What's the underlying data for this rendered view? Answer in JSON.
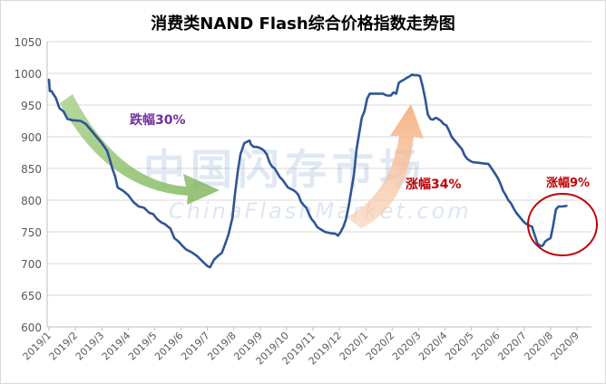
{
  "chart_data": {
    "type": "line",
    "title": "消费类NAND Flash综合价格指数走势图",
    "xlabel": "",
    "ylabel": "",
    "ylim": [
      600,
      1050
    ],
    "y_ticks": [
      "600",
      "650",
      "700",
      "750",
      "800",
      "850",
      "900",
      "950",
      "1000",
      "1050"
    ],
    "x_ticks": [
      "2019/1",
      "2019/2",
      "2019/3",
      "2019/4",
      "2019/5",
      "2019/6",
      "2019/7",
      "2019/8",
      "2019/9",
      "2019/10",
      "2019/11",
      "2019/12",
      "2020/1",
      "2020/2",
      "2020/3",
      "2020/4",
      "2020/5",
      "2020/6",
      "2020/7",
      "2020/8",
      "2020/9"
    ],
    "grid": true,
    "legend": "none",
    "series": [
      {
        "color": "#2f5597",
        "points": [
          [
            0.0,
            990
          ],
          [
            0.03,
            972
          ],
          [
            0.1,
            972
          ],
          [
            0.15,
            968
          ],
          [
            0.25,
            962
          ],
          [
            0.4,
            945
          ],
          [
            0.55,
            940
          ],
          [
            0.7,
            928
          ],
          [
            0.9,
            926
          ],
          [
            1.2,
            925
          ],
          [
            1.4,
            920
          ],
          [
            1.6,
            910
          ],
          [
            1.8,
            900
          ],
          [
            2.0,
            890
          ],
          [
            2.2,
            878
          ],
          [
            2.3,
            865
          ],
          [
            2.4,
            850
          ],
          [
            2.5,
            838
          ],
          [
            2.6,
            820
          ],
          [
            2.8,
            815
          ],
          [
            3.0,
            808
          ],
          [
            3.2,
            797
          ],
          [
            3.4,
            790
          ],
          [
            3.6,
            788
          ],
          [
            3.8,
            780
          ],
          [
            3.95,
            778
          ],
          [
            4.1,
            770
          ],
          [
            4.25,
            765
          ],
          [
            4.4,
            762
          ],
          [
            4.6,
            755
          ],
          [
            4.75,
            740
          ],
          [
            4.9,
            735
          ],
          [
            5.05,
            728
          ],
          [
            5.2,
            722
          ],
          [
            5.4,
            718
          ],
          [
            5.6,
            712
          ],
          [
            5.8,
            704
          ],
          [
            5.9,
            700
          ],
          [
            6.0,
            696
          ],
          [
            6.1,
            694
          ],
          [
            6.25,
            706
          ],
          [
            6.4,
            712
          ],
          [
            6.55,
            717
          ],
          [
            6.65,
            728
          ],
          [
            6.8,
            746
          ],
          [
            6.95,
            772
          ],
          [
            7.05,
            812
          ],
          [
            7.15,
            845
          ],
          [
            7.25,
            872
          ],
          [
            7.4,
            890
          ],
          [
            7.5,
            892
          ],
          [
            7.6,
            894
          ],
          [
            7.65,
            888
          ],
          [
            7.75,
            884
          ],
          [
            7.85,
            884
          ],
          [
            7.95,
            883
          ],
          [
            8.05,
            881
          ],
          [
            8.15,
            878
          ],
          [
            8.25,
            872
          ],
          [
            8.35,
            860
          ],
          [
            8.45,
            853
          ],
          [
            8.55,
            850
          ],
          [
            8.65,
            843
          ],
          [
            8.75,
            836
          ],
          [
            8.85,
            832
          ],
          [
            8.95,
            826
          ],
          [
            9.05,
            820
          ],
          [
            9.15,
            818
          ],
          [
            9.25,
            816
          ],
          [
            9.35,
            813
          ],
          [
            9.45,
            808
          ],
          [
            9.55,
            797
          ],
          [
            9.65,
            792
          ],
          [
            9.75,
            788
          ],
          [
            9.85,
            778
          ],
          [
            9.95,
            770
          ],
          [
            10.05,
            765
          ],
          [
            10.15,
            758
          ],
          [
            10.25,
            755
          ],
          [
            10.45,
            750
          ],
          [
            10.65,
            748
          ],
          [
            10.85,
            747
          ],
          [
            10.95,
            744
          ],
          [
            11.05,
            750
          ],
          [
            11.15,
            758
          ],
          [
            11.25,
            770
          ],
          [
            11.35,
            790
          ],
          [
            11.45,
            815
          ],
          [
            11.55,
            840
          ],
          [
            11.65,
            880
          ],
          [
            11.75,
            905
          ],
          [
            11.85,
            930
          ],
          [
            11.95,
            940
          ],
          [
            12.05,
            960
          ],
          [
            12.15,
            968
          ],
          [
            12.3,
            968
          ],
          [
            12.5,
            968
          ],
          [
            12.65,
            968
          ],
          [
            12.8,
            965
          ],
          [
            12.95,
            965
          ],
          [
            13.05,
            970
          ],
          [
            13.15,
            968
          ],
          [
            13.25,
            985
          ],
          [
            13.35,
            988
          ],
          [
            13.45,
            990
          ],
          [
            13.55,
            993
          ],
          [
            13.65,
            995
          ],
          [
            13.75,
            998
          ],
          [
            13.85,
            997
          ],
          [
            13.95,
            997
          ],
          [
            14.05,
            996
          ],
          [
            14.15,
            980
          ],
          [
            14.25,
            960
          ],
          [
            14.35,
            935
          ],
          [
            14.45,
            928
          ],
          [
            14.55,
            927
          ],
          [
            14.65,
            930
          ],
          [
            14.75,
            928
          ],
          [
            14.85,
            925
          ],
          [
            14.95,
            920
          ],
          [
            15.05,
            918
          ],
          [
            15.15,
            910
          ],
          [
            15.25,
            900
          ],
          [
            15.35,
            895
          ],
          [
            15.45,
            890
          ],
          [
            15.55,
            885
          ],
          [
            15.65,
            880
          ],
          [
            15.75,
            870
          ],
          [
            15.85,
            865
          ],
          [
            15.95,
            862
          ],
          [
            16.05,
            860
          ],
          [
            16.25,
            859
          ],
          [
            16.45,
            858
          ],
          [
            16.65,
            857
          ],
          [
            16.85,
            845
          ],
          [
            17.0,
            835
          ],
          [
            17.1,
            826
          ],
          [
            17.2,
            815
          ],
          [
            17.3,
            808
          ],
          [
            17.4,
            800
          ],
          [
            17.5,
            795
          ],
          [
            17.6,
            787
          ],
          [
            17.7,
            780
          ],
          [
            17.8,
            775
          ],
          [
            17.9,
            770
          ],
          [
            18.0,
            765
          ],
          [
            18.1,
            762
          ],
          [
            18.2,
            760
          ],
          [
            18.3,
            758
          ],
          [
            18.4,
            745
          ],
          [
            18.5,
            732
          ],
          [
            18.6,
            728
          ],
          [
            18.7,
            728
          ],
          [
            18.8,
            735
          ],
          [
            18.9,
            738
          ],
          [
            19.0,
            740
          ],
          [
            19.1,
            760
          ],
          [
            19.2,
            785
          ],
          [
            19.3,
            790
          ],
          [
            19.45,
            790
          ],
          [
            19.6,
            791
          ]
        ]
      }
    ],
    "annotations": [
      {
        "text": "跌幅30%",
        "color": "#7030a0"
      },
      {
        "text": "涨幅34%",
        "color": "#c00000"
      },
      {
        "text": "涨幅9%",
        "color": "#c00000"
      }
    ],
    "watermark": {
      "text": "中国闪存市场",
      "subtext": "ChinaFlashMarket.com"
    }
  }
}
